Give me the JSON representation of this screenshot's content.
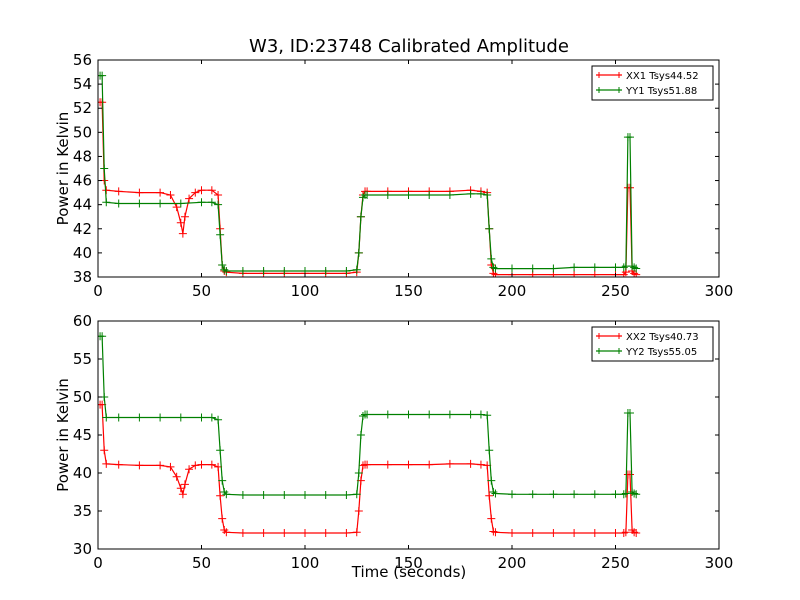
{
  "figure": {
    "title": "W3, ID:23748 Calibrated Amplitude",
    "xlabel": "Time (seconds)"
  },
  "chart_data": [
    {
      "type": "line",
      "ylabel": "Power in Kelvin",
      "xlim": [
        0,
        300
      ],
      "ylim": [
        38,
        56
      ],
      "xticks": [
        "0",
        "50",
        "100",
        "150",
        "200",
        "250",
        "300"
      ],
      "yticks": [
        "38",
        "40",
        "42",
        "44",
        "46",
        "48",
        "50",
        "52",
        "54",
        "56"
      ],
      "legend": "top-right",
      "grid": false,
      "series": [
        {
          "name": "XX1 Tsys44.52",
          "color": "#ff0000",
          "x": [
            1,
            2,
            3,
            4,
            10,
            20,
            30,
            35,
            38,
            40,
            41,
            42,
            44,
            47,
            50,
            55,
            58,
            59,
            60,
            61,
            62,
            70,
            80,
            90,
            100,
            110,
            120,
            125,
            126,
            127,
            128,
            129,
            130,
            140,
            150,
            160,
            170,
            180,
            185,
            188,
            189,
            190,
            191,
            192,
            200,
            210,
            220,
            230,
            240,
            250,
            254,
            255,
            256,
            257,
            258,
            259,
            260
          ],
          "y": [
            52.5,
            52.5,
            46,
            45.2,
            45.1,
            45,
            45,
            44.8,
            43.8,
            42.5,
            41.6,
            43,
            44.5,
            45,
            45.2,
            45.2,
            44.8,
            42,
            39,
            38.5,
            38.4,
            38.3,
            38.3,
            38.3,
            38.3,
            38.3,
            38.3,
            38.4,
            40,
            43,
            44.8,
            45.1,
            45.1,
            45.1,
            45.1,
            45.1,
            45.1,
            45.2,
            45.1,
            45,
            42,
            39,
            38.3,
            38.2,
            38.2,
            38.2,
            38.2,
            38.2,
            38.2,
            38.2,
            38.2,
            38.4,
            45.4,
            45.4,
            38.5,
            38.3,
            38.2
          ]
        },
        {
          "name": "YY1 Tsys51.88",
          "color": "#008000",
          "x": [
            1,
            2,
            3,
            4,
            10,
            20,
            30,
            40,
            50,
            55,
            58,
            59,
            60,
            61,
            62,
            70,
            80,
            90,
            100,
            110,
            120,
            125,
            126,
            127,
            128,
            129,
            130,
            140,
            150,
            160,
            170,
            180,
            185,
            188,
            189,
            190,
            191,
            192,
            200,
            210,
            220,
            230,
            240,
            250,
            254,
            255,
            256,
            257,
            258,
            259,
            260
          ],
          "y": [
            54.7,
            54.7,
            47,
            44.2,
            44.1,
            44.1,
            44.1,
            44.1,
            44.2,
            44.2,
            44,
            41.5,
            39,
            38.6,
            38.5,
            38.5,
            38.5,
            38.5,
            38.5,
            38.5,
            38.5,
            38.6,
            40,
            43,
            44.6,
            44.8,
            44.8,
            44.8,
            44.8,
            44.8,
            44.8,
            44.9,
            44.9,
            44.8,
            42,
            39.5,
            38.8,
            38.7,
            38.7,
            38.7,
            38.7,
            38.8,
            38.8,
            38.8,
            38.8,
            38.9,
            49.6,
            49.6,
            38.9,
            38.8,
            38.7
          ]
        }
      ]
    },
    {
      "type": "line",
      "ylabel": "Power in Kelvin",
      "xlim": [
        0,
        300
      ],
      "ylim": [
        30,
        60
      ],
      "xticks": [
        "0",
        "50",
        "100",
        "150",
        "200",
        "250",
        "300"
      ],
      "yticks": [
        "30",
        "35",
        "40",
        "45",
        "50",
        "55",
        "60"
      ],
      "legend": "top-right",
      "grid": false,
      "series": [
        {
          "name": "XX2 Tsys40.73",
          "color": "#ff0000",
          "x": [
            1,
            2,
            3,
            4,
            10,
            20,
            30,
            35,
            38,
            40,
            41,
            42,
            44,
            47,
            50,
            55,
            58,
            59,
            60,
            61,
            62,
            70,
            80,
            90,
            100,
            110,
            120,
            125,
            126,
            127,
            128,
            129,
            130,
            140,
            150,
            160,
            170,
            180,
            185,
            188,
            189,
            190,
            191,
            192,
            200,
            210,
            220,
            230,
            240,
            250,
            254,
            255,
            256,
            257,
            258,
            259,
            260
          ],
          "y": [
            49,
            49,
            43,
            41.2,
            41.1,
            41,
            41,
            40.8,
            39.5,
            38,
            37.2,
            38.5,
            40.5,
            41,
            41.1,
            41.1,
            40.8,
            37,
            34,
            32.5,
            32.2,
            32.1,
            32.1,
            32.1,
            32.1,
            32.1,
            32.1,
            32.2,
            35,
            39,
            41,
            41.1,
            41.1,
            41.1,
            41.1,
            41.1,
            41.2,
            41.2,
            41.1,
            41,
            37,
            34,
            32.3,
            32.2,
            32.1,
            32.1,
            32.1,
            32.1,
            32.1,
            32.1,
            32.1,
            32.2,
            39.8,
            39.8,
            32.5,
            32.2,
            32.1
          ]
        },
        {
          "name": "YY2 Tsys55.05",
          "color": "#008000",
          "x": [
            1,
            2,
            3,
            4,
            10,
            20,
            30,
            40,
            50,
            55,
            58,
            59,
            60,
            61,
            62,
            70,
            80,
            90,
            100,
            110,
            120,
            125,
            126,
            127,
            128,
            129,
            130,
            140,
            150,
            160,
            170,
            180,
            185,
            188,
            189,
            190,
            191,
            192,
            200,
            210,
            220,
            230,
            240,
            250,
            254,
            255,
            256,
            257,
            258,
            259,
            260
          ],
          "y": [
            58,
            58,
            50,
            47.3,
            47.3,
            47.3,
            47.3,
            47.3,
            47.3,
            47.3,
            47,
            43,
            39,
            37.5,
            37.2,
            37.1,
            37.1,
            37.1,
            37.1,
            37.1,
            37.1,
            37.2,
            40,
            45,
            47.5,
            47.7,
            47.7,
            47.7,
            47.7,
            47.7,
            47.7,
            47.7,
            47.7,
            47.6,
            43,
            39,
            37.5,
            37.3,
            37.2,
            37.2,
            37.2,
            37.2,
            37.2,
            37.2,
            37.2,
            37.3,
            47.9,
            47.9,
            37.5,
            37.3,
            37.2
          ]
        }
      ]
    }
  ]
}
